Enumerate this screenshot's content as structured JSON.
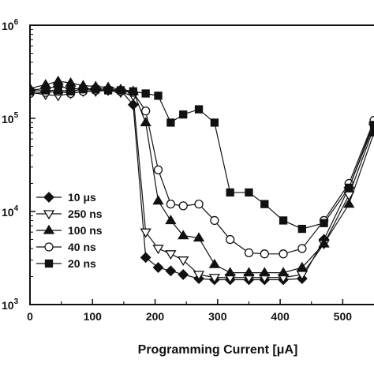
{
  "chart_data": {
    "type": "line",
    "xlabel": "Programming Current [μA]",
    "ylabel": "",
    "xlim": [
      0,
      550
    ],
    "ylim": [
      1000,
      1000000
    ],
    "y_scale": "log",
    "x_ticks": [
      0,
      100,
      200,
      300,
      400,
      500
    ],
    "y_ticks": [
      {
        "value": 1000,
        "base": "10",
        "exp": "3"
      },
      {
        "value": 10000,
        "base": "10",
        "exp": "4"
      },
      {
        "value": 100000,
        "base": "10",
        "exp": "5"
      },
      {
        "value": 1000000,
        "base": "10",
        "exp": "6"
      }
    ],
    "grid": false,
    "legend_position": "bottom-left",
    "series": [
      {
        "name": "10 μs",
        "marker": "diamond-filled",
        "x": [
          0,
          25,
          45,
          65,
          85,
          105,
          125,
          145,
          165,
          185,
          205,
          225,
          245,
          270,
          295,
          320,
          350,
          375,
          405,
          435,
          470,
          510,
          550
        ],
        "y": [
          200000,
          210000,
          220000,
          210000,
          205000,
          210000,
          205000,
          200000,
          140000,
          3200,
          2500,
          2300,
          2100,
          1900,
          1850,
          1850,
          1850,
          1850,
          1850,
          1900,
          5000,
          18000,
          90000
        ]
      },
      {
        "name": "250 ns",
        "marker": "triangle-down-open",
        "x": [
          0,
          25,
          45,
          65,
          85,
          105,
          125,
          145,
          165,
          185,
          205,
          225,
          245,
          270,
          295,
          320,
          350,
          375,
          405,
          435,
          470,
          510,
          550
        ],
        "y": [
          190000,
          180000,
          175000,
          185000,
          195000,
          195000,
          200000,
          190000,
          175000,
          6000,
          4000,
          3500,
          3000,
          2100,
          1950,
          1950,
          1950,
          1950,
          1950,
          2100,
          4500,
          15000,
          80000
        ]
      },
      {
        "name": "100 ns",
        "marker": "triangle-up-filled",
        "x": [
          0,
          25,
          45,
          65,
          85,
          105,
          125,
          145,
          165,
          185,
          205,
          225,
          245,
          270,
          295,
          320,
          350,
          375,
          405,
          435,
          470,
          510,
          550
        ],
        "y": [
          210000,
          230000,
          250000,
          240000,
          225000,
          220000,
          215000,
          205000,
          195000,
          90000,
          13000,
          8000,
          5500,
          5200,
          2700,
          2200,
          2200,
          2200,
          2200,
          2500,
          4500,
          12000,
          70000
        ]
      },
      {
        "name": "40 ns",
        "marker": "circle-open",
        "x": [
          0,
          25,
          45,
          65,
          85,
          105,
          125,
          145,
          165,
          185,
          205,
          225,
          245,
          270,
          295,
          320,
          350,
          375,
          405,
          435,
          470,
          510,
          550
        ],
        "y": [
          185000,
          190000,
          195000,
          185000,
          195000,
          200000,
          200000,
          195000,
          190000,
          120000,
          28000,
          12000,
          11500,
          12000,
          8000,
          5000,
          3600,
          3500,
          3500,
          4000,
          8000,
          20000,
          95000
        ]
      },
      {
        "name": "20 ns",
        "marker": "square-filled",
        "x": [
          0,
          25,
          45,
          65,
          85,
          105,
          125,
          145,
          165,
          185,
          205,
          225,
          245,
          270,
          295,
          320,
          350,
          375,
          405,
          435,
          470,
          510,
          550
        ],
        "y": [
          195000,
          200000,
          200000,
          195000,
          205000,
          205000,
          200000,
          200000,
          195000,
          185000,
          175000,
          90000,
          110000,
          125000,
          90000,
          16000,
          16000,
          12000,
          8000,
          6500,
          7500,
          18000,
          85000
        ]
      }
    ]
  }
}
